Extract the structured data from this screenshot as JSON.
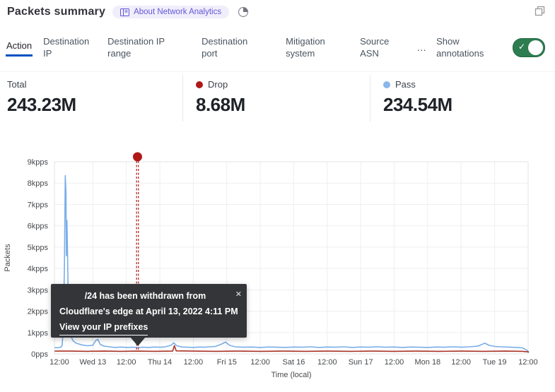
{
  "header": {
    "title": "Packets summary",
    "badge_label": "About Network Analytics"
  },
  "tabs": {
    "items": [
      {
        "label": "Action",
        "active": true
      },
      {
        "label": "Destination IP",
        "active": false
      },
      {
        "label": "Destination IP range",
        "active": false
      },
      {
        "label": "Destination port",
        "active": false
      },
      {
        "label": "Mitigation system",
        "active": false
      },
      {
        "label": "Source ASN",
        "active": false
      }
    ],
    "more_label": "…",
    "annotations_label": "Show annotations",
    "toggle_on": true,
    "toggle_check": "✓"
  },
  "stats": [
    {
      "label": "Total",
      "value": "243.23M",
      "dot": ""
    },
    {
      "label": "Drop",
      "value": "8.68M",
      "dot": "#b01818"
    },
    {
      "label": "Pass",
      "value": "234.54M",
      "dot": "#8ab6ea"
    }
  ],
  "tooltip": {
    "line1": "/24 has been withdrawn from",
    "line2": "Cloudflare's edge at April 13, 2022 4:11 PM",
    "link": "View your IP prefixes",
    "close": "✕"
  },
  "chart_data": {
    "type": "line",
    "title": "Packets summary",
    "xlabel": "Time (local)",
    "ylabel": "Packets",
    "x_unit": "hours since first tick (12:00)",
    "y_unit": "kpps",
    "ylim": [
      0,
      9
    ],
    "grid": true,
    "legend_position": "top-stats-row",
    "y_ticks": [
      {
        "v": 0,
        "label": "0pps"
      },
      {
        "v": 1,
        "label": "1kpps"
      },
      {
        "v": 2,
        "label": "2kpps"
      },
      {
        "v": 3,
        "label": "3kpps"
      },
      {
        "v": 4,
        "label": "4kpps"
      },
      {
        "v": 5,
        "label": "5kpps"
      },
      {
        "v": 6,
        "label": "6kpps"
      },
      {
        "v": 7,
        "label": "7kpps"
      },
      {
        "v": 8,
        "label": "8kpps"
      },
      {
        "v": 9,
        "label": "9kpps"
      }
    ],
    "x_ticks": [
      {
        "h": 0,
        "label": "12:00"
      },
      {
        "h": 12,
        "label": "Wed 13"
      },
      {
        "h": 24,
        "label": "12:00"
      },
      {
        "h": 36,
        "label": "Thu 14"
      },
      {
        "h": 48,
        "label": "12:00"
      },
      {
        "h": 60,
        "label": "Fri 15"
      },
      {
        "h": 72,
        "label": "12:00"
      },
      {
        "h": 84,
        "label": "Sat 16"
      },
      {
        "h": 96,
        "label": "12:00"
      },
      {
        "h": 108,
        "label": "Sun 17"
      },
      {
        "h": 120,
        "label": "12:00"
      },
      {
        "h": 132,
        "label": "Mon 18"
      },
      {
        "h": 144,
        "label": "12:00"
      },
      {
        "h": 156,
        "label": "Tue 19"
      },
      {
        "h": 168,
        "label": "12:00"
      }
    ],
    "series": [
      {
        "name": "Pass",
        "color": "#7aaee8",
        "points": [
          [
            -1.7,
            0.3
          ],
          [
            -0.8,
            0.28
          ],
          [
            0,
            0.3
          ],
          [
            0.6,
            0.32
          ],
          [
            1.0,
            0.4
          ],
          [
            1.4,
            1.2
          ],
          [
            1.8,
            4.0
          ],
          [
            2.1,
            8.35
          ],
          [
            2.35,
            7.6
          ],
          [
            2.5,
            4.6
          ],
          [
            2.7,
            6.25
          ],
          [
            2.9,
            5.0
          ],
          [
            3.2,
            2.4
          ],
          [
            3.6,
            1.3
          ],
          [
            4.2,
            0.8
          ],
          [
            5,
            0.6
          ],
          [
            6,
            0.5
          ],
          [
            8,
            0.42
          ],
          [
            10,
            0.38
          ],
          [
            12,
            0.4
          ],
          [
            13,
            0.62
          ],
          [
            13.8,
            0.68
          ],
          [
            14.6,
            0.45
          ],
          [
            16,
            0.36
          ],
          [
            18,
            0.33
          ],
          [
            20,
            0.3
          ],
          [
            22,
            0.32
          ],
          [
            24,
            0.3
          ],
          [
            26,
            0.31
          ],
          [
            28,
            0.3
          ],
          [
            30,
            0.31
          ],
          [
            32,
            0.3
          ],
          [
            34,
            0.32
          ],
          [
            36,
            0.31
          ],
          [
            38,
            0.33
          ],
          [
            40,
            0.4
          ],
          [
            41,
            0.52
          ],
          [
            42,
            0.38
          ],
          [
            44,
            0.32
          ],
          [
            46,
            0.31
          ],
          [
            48,
            0.3
          ],
          [
            50,
            0.32
          ],
          [
            52,
            0.31
          ],
          [
            54,
            0.33
          ],
          [
            56,
            0.35
          ],
          [
            58,
            0.45
          ],
          [
            59.5,
            0.55
          ],
          [
            61,
            0.4
          ],
          [
            63,
            0.33
          ],
          [
            66,
            0.31
          ],
          [
            69,
            0.32
          ],
          [
            72,
            0.3
          ],
          [
            75,
            0.32
          ],
          [
            78,
            0.31
          ],
          [
            81,
            0.3
          ],
          [
            84,
            0.32
          ],
          [
            87,
            0.31
          ],
          [
            90,
            0.33
          ],
          [
            93,
            0.3
          ],
          [
            96,
            0.32
          ],
          [
            99,
            0.31
          ],
          [
            102,
            0.33
          ],
          [
            105,
            0.3
          ],
          [
            108,
            0.32
          ],
          [
            111,
            0.31
          ],
          [
            114,
            0.33
          ],
          [
            117,
            0.31
          ],
          [
            120,
            0.32
          ],
          [
            123,
            0.3
          ],
          [
            126,
            0.32
          ],
          [
            129,
            0.31
          ],
          [
            132,
            0.3
          ],
          [
            135,
            0.32
          ],
          [
            138,
            0.31
          ],
          [
            141,
            0.33
          ],
          [
            144,
            0.31
          ],
          [
            147,
            0.33
          ],
          [
            150,
            0.36
          ],
          [
            152.5,
            0.5
          ],
          [
            154,
            0.4
          ],
          [
            156,
            0.35
          ],
          [
            158,
            0.33
          ],
          [
            160,
            0.32
          ],
          [
            162,
            0.31
          ],
          [
            164,
            0.3
          ],
          [
            166,
            0.28
          ],
          [
            167.5,
            0.18
          ],
          [
            168.3,
            0.06
          ]
        ]
      },
      {
        "name": "Drop",
        "color": "#a93226",
        "points": [
          [
            -1.7,
            0.13
          ],
          [
            4,
            0.13
          ],
          [
            10,
            0.12
          ],
          [
            16,
            0.13
          ],
          [
            22,
            0.12
          ],
          [
            28,
            0.13
          ],
          [
            34,
            0.12
          ],
          [
            40.6,
            0.13
          ],
          [
            41.2,
            0.38
          ],
          [
            41.9,
            0.14
          ],
          [
            48,
            0.13
          ],
          [
            56,
            0.12
          ],
          [
            64,
            0.13
          ],
          [
            72,
            0.12
          ],
          [
            80,
            0.13
          ],
          [
            88,
            0.12
          ],
          [
            96,
            0.13
          ],
          [
            104,
            0.12
          ],
          [
            112,
            0.13
          ],
          [
            120,
            0.12
          ],
          [
            128,
            0.13
          ],
          [
            136,
            0.12
          ],
          [
            144,
            0.13
          ],
          [
            152,
            0.12
          ],
          [
            160,
            0.13
          ],
          [
            166,
            0.12
          ],
          [
            168.3,
            0.09
          ]
        ]
      }
    ],
    "annotation": {
      "h": 28.0,
      "color": "#b01818",
      "style": "double-dashed-vertical-line",
      "marker": "dot-above-plot",
      "text": "/24 has been withdrawn from Cloudflare's edge at April 13, 2022 4:11 PM"
    }
  }
}
